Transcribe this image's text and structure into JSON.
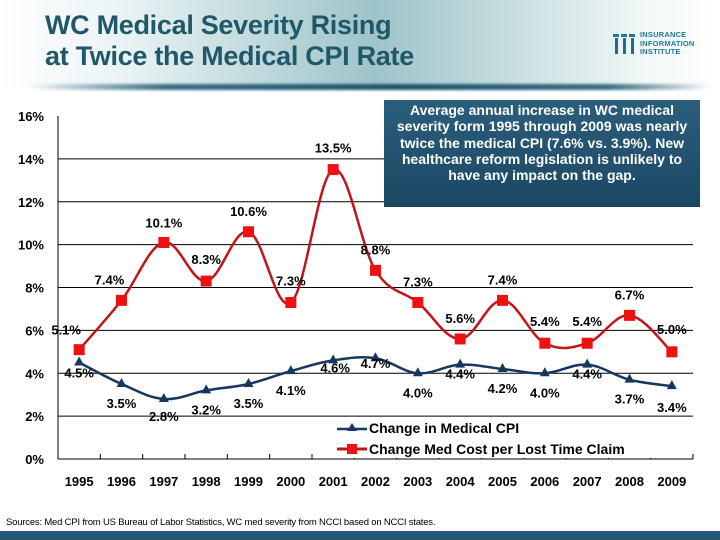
{
  "header": {
    "title_line1": "WC Medical Severity Rising",
    "title_line2": "at Twice the Medical CPI Rate",
    "logo": {
      "icon": "iii-logo-icon",
      "line1": "INSURANCE",
      "line2": "INFORMATION",
      "line3": "INSTITUTE"
    }
  },
  "callout": {
    "text": "Average annual increase in WC medical severity form 1995 through 2009 was nearly twice the medical CPI (7.6% vs. 3.9%).  New healthcare reform legislation is unlikely to have any impact on the gap."
  },
  "footer": {
    "sources": "Sources:  Med CPI from US Bureau of Labor Statistics, WC med severity from NCCI based on NCCI states."
  },
  "colors": {
    "title": "#215868",
    "cpi_series": "#17375e",
    "claim_series_line": "#c0151b",
    "claim_series_marker": "#ee1111",
    "callout_bg": "#245470",
    "bottom_bar": "#245a78"
  },
  "chart_data": {
    "type": "line",
    "title": "WC Medical Severity Rising at Twice the Medical CPI Rate",
    "xlabel": "",
    "ylabel": "",
    "x": [
      "1995",
      "1996",
      "1997",
      "1998",
      "1999",
      "2000",
      "2001",
      "2002",
      "2003",
      "2004",
      "2005",
      "2006",
      "2007",
      "2008",
      "2009"
    ],
    "ylim": [
      0,
      16
    ],
    "yticks": [
      0,
      2,
      4,
      6,
      8,
      10,
      12,
      14,
      16
    ],
    "ytick_labels": [
      "0%",
      "2%",
      "4%",
      "6%",
      "8%",
      "10%",
      "12%",
      "14%",
      "16%"
    ],
    "grid": true,
    "legend_position": "bottom-right",
    "series": [
      {
        "name": "Change in Medical CPI",
        "marker": "triangle",
        "values": [
          4.5,
          3.5,
          2.8,
          3.2,
          3.5,
          4.1,
          4.6,
          4.7,
          4.0,
          4.4,
          4.2,
          4.0,
          4.4,
          3.7,
          3.4
        ],
        "labels": [
          "4.5%",
          "3.5%",
          "2.8%",
          "3.2%",
          "3.5%",
          "4.1%",
          "4.6%",
          "4.7%",
          "4.0%",
          "4.4%",
          "4.2%",
          "4.0%",
          "4.4%",
          "3.7%",
          "3.4%"
        ]
      },
      {
        "name": "Change Med Cost per Lost Time Claim",
        "marker": "square",
        "values": [
          5.1,
          7.4,
          10.1,
          8.3,
          10.6,
          7.3,
          13.5,
          8.8,
          7.3,
          5.6,
          7.4,
          5.4,
          5.4,
          6.7,
          5.0
        ],
        "labels": [
          "5.1%",
          "7.4%",
          "10.1%",
          "8.3%",
          "10.6%",
          "7.3%",
          "13.5%",
          "8.8%",
          "7.3%",
          "5.6%",
          "7.4%",
          "5.4%",
          "5.4%",
          "6.7%",
          "5.0%"
        ]
      }
    ]
  }
}
